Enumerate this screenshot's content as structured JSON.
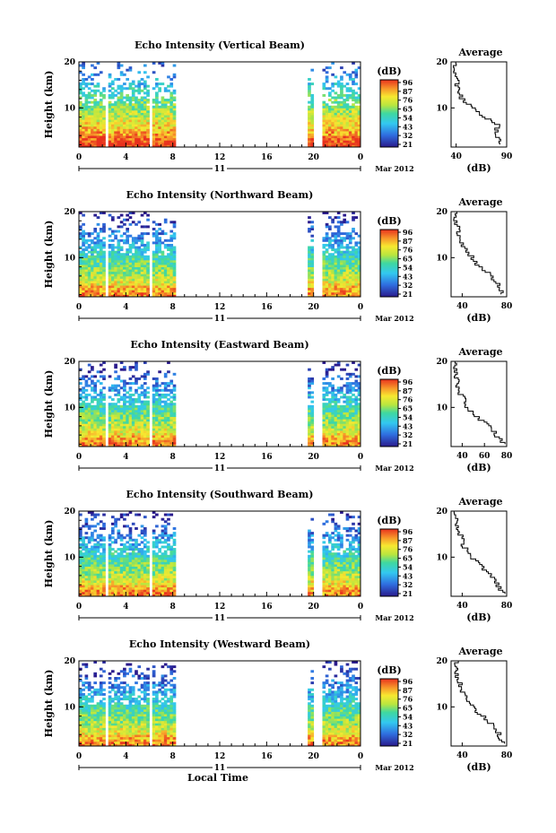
{
  "chart_data": [
    {
      "type": "heatmap",
      "title": "Echo Intensity (Vertical Beam)",
      "ylabel": "Height (km)",
      "x_ticks": [
        "0",
        "4",
        "8",
        "12",
        "16",
        "20",
        "0"
      ],
      "y_ticks": [
        "20",
        "10"
      ],
      "date_day": "11",
      "date_label": "Mar 2012",
      "colorbar": {
        "unit": "(dB)",
        "ticks": [
          "96",
          "87",
          "76",
          "65",
          "54",
          "43",
          "32",
          "21"
        ]
      },
      "data_gaps_local_time": [
        [
          2.3,
          2.6
        ],
        [
          5.9,
          6.2
        ],
        [
          8.2,
          19.5
        ],
        [
          20.1,
          20.7
        ]
      ],
      "average_profile": {
        "title": "Average",
        "xlabel": "(dB)",
        "ylabel_ticks": [
          "20",
          "10"
        ],
        "x_ticks": [
          "40",
          "90"
        ],
        "xlim": [
          35,
          90
        ],
        "height_km": [
          2,
          4,
          6,
          8,
          10,
          12,
          14,
          16,
          18,
          20
        ],
        "db": [
          85,
          78,
          82,
          68,
          55,
          45,
          42,
          40,
          38,
          40
        ]
      }
    },
    {
      "type": "heatmap",
      "title": "Echo Intensity (Northward Beam)",
      "ylabel": "Height (km)",
      "x_ticks": [
        "0",
        "4",
        "8",
        "12",
        "16",
        "20",
        "0"
      ],
      "y_ticks": [
        "20",
        "10"
      ],
      "date_day": "11",
      "date_label": "Mar 2012",
      "colorbar": {
        "unit": "(dB)",
        "ticks": [
          "96",
          "87",
          "76",
          "65",
          "54",
          "43",
          "32",
          "21"
        ]
      },
      "data_gaps_local_time": [
        [
          2.3,
          2.6
        ],
        [
          5.9,
          6.2
        ],
        [
          8.2,
          19.5
        ],
        [
          20.1,
          20.7
        ]
      ],
      "average_profile": {
        "title": "Average",
        "xlabel": "(dB)",
        "ylabel_ticks": [
          "20",
          "10"
        ],
        "x_ticks": [
          "40",
          "80"
        ],
        "xlim": [
          30,
          80
        ],
        "height_km": [
          2,
          4,
          6,
          8,
          10,
          12,
          14,
          16,
          18,
          20
        ],
        "db": [
          75,
          72,
          65,
          55,
          48,
          42,
          38,
          36,
          34,
          36
        ]
      }
    },
    {
      "type": "heatmap",
      "title": "Echo Intensity (Eastward Beam)",
      "ylabel": "Height (km)",
      "x_ticks": [
        "0",
        "4",
        "8",
        "12",
        "16",
        "20",
        "0"
      ],
      "y_ticks": [
        "20",
        "10"
      ],
      "date_day": "11",
      "date_label": "Mar 2012",
      "colorbar": {
        "unit": "(dB)",
        "ticks": [
          "96",
          "87",
          "76",
          "65",
          "54",
          "43",
          "32",
          "21"
        ]
      },
      "data_gaps_local_time": [
        [
          2.3,
          2.6
        ],
        [
          5.9,
          6.2
        ],
        [
          8.2,
          19.5
        ],
        [
          20.1,
          20.7
        ]
      ],
      "average_profile": {
        "title": "Average",
        "xlabel": "(dB)",
        "ylabel_ticks": [
          "20",
          "10"
        ],
        "x_ticks": [
          "40",
          "60",
          "80"
        ],
        "xlim": [
          30,
          80
        ],
        "height_km": [
          2,
          4,
          6,
          8,
          10,
          12,
          14,
          16,
          18,
          20
        ],
        "db": [
          78,
          70,
          62,
          52,
          44,
          40,
          37,
          35,
          34,
          35
        ]
      }
    },
    {
      "type": "heatmap",
      "title": "Echo Intensity (Southward Beam)",
      "ylabel": "Height (km)",
      "x_ticks": [
        "0",
        "4",
        "8",
        "12",
        "16",
        "20",
        "0"
      ],
      "y_ticks": [
        "20",
        "10"
      ],
      "date_day": "11",
      "date_label": "Mar 2012",
      "colorbar": {
        "unit": "(dB)",
        "ticks": [
          "96",
          "87",
          "76",
          "65",
          "54",
          "43",
          "32",
          "21"
        ]
      },
      "data_gaps_local_time": [
        [
          2.3,
          2.6
        ],
        [
          5.9,
          6.2
        ],
        [
          8.2,
          19.5
        ],
        [
          20.1,
          20.7
        ]
      ],
      "average_profile": {
        "title": "Average",
        "xlabel": "(dB)",
        "ylabel_ticks": [
          "20",
          "10"
        ],
        "x_ticks": [
          "40",
          "80"
        ],
        "xlim": [
          30,
          80
        ],
        "height_km": [
          2,
          4,
          6,
          8,
          10,
          12,
          14,
          16,
          18,
          20
        ],
        "db": [
          76,
          72,
          64,
          56,
          47,
          42,
          39,
          36,
          34,
          35
        ]
      }
    },
    {
      "type": "heatmap",
      "title": "Echo Intensity (Westward Beam)",
      "ylabel": "Height (km)",
      "xlabel": "Local Time",
      "x_ticks": [
        "0",
        "4",
        "8",
        "12",
        "16",
        "20",
        "0"
      ],
      "y_ticks": [
        "20",
        "10"
      ],
      "date_day": "11",
      "date_label": "Mar 2012",
      "colorbar": {
        "unit": "(dB)",
        "ticks": [
          "96",
          "87",
          "76",
          "65",
          "54",
          "43",
          "32",
          "21"
        ]
      },
      "data_gaps_local_time": [
        [
          2.3,
          2.6
        ],
        [
          5.9,
          6.2
        ],
        [
          8.2,
          19.5
        ],
        [
          20.1,
          20.7
        ]
      ],
      "average_profile": {
        "title": "Average",
        "xlabel": "(dB)",
        "ylabel_ticks": [
          "20",
          "10"
        ],
        "x_ticks": [
          "40",
          "80"
        ],
        "xlim": [
          30,
          80
        ],
        "height_km": [
          2,
          4,
          6,
          8,
          10,
          12,
          14,
          16,
          18,
          20
        ],
        "db": [
          77,
          73,
          66,
          57,
          48,
          43,
          39,
          36,
          34,
          36
        ]
      }
    }
  ]
}
